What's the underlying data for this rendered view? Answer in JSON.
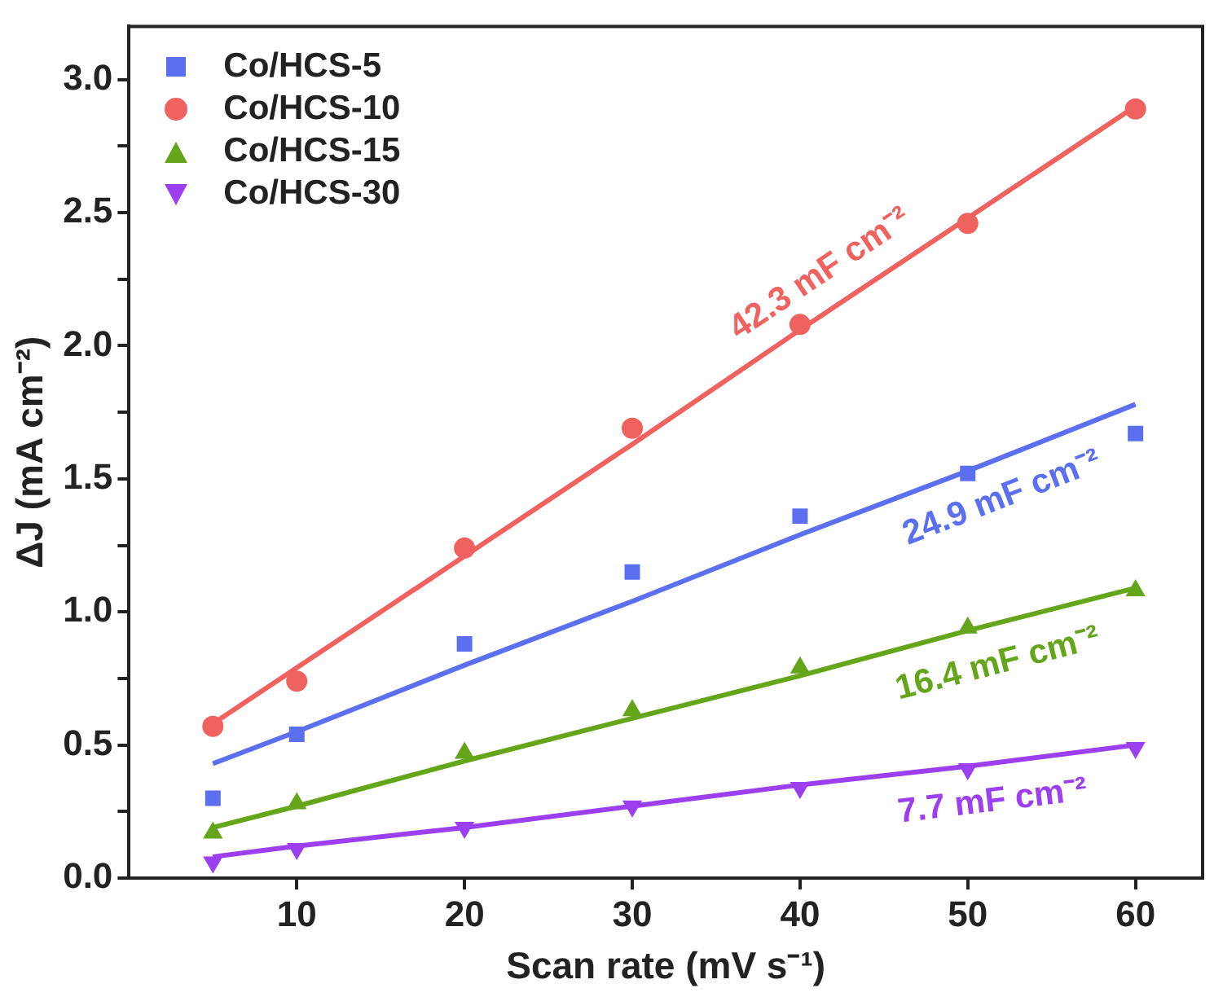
{
  "chart_data": {
    "type": "scatter",
    "xlabel": "Scan rate (mV s⁻¹)",
    "ylabel": "ΔJ (mA cm⁻²)",
    "x": [
      5,
      10,
      20,
      30,
      40,
      50,
      60
    ],
    "series": [
      {
        "name": "Co/HCS-5",
        "color": "#5b6ff0",
        "marker": "square",
        "values": [
          0.3,
          0.54,
          0.88,
          1.15,
          1.36,
          1.52,
          1.67
        ]
      },
      {
        "name": "Co/HCS-10",
        "color": "#f0625f",
        "marker": "circle",
        "values": [
          0.57,
          0.74,
          1.24,
          1.69,
          2.08,
          2.46,
          2.89
        ]
      },
      {
        "name": "Co/HCS-15",
        "color": "#64a51a",
        "marker": "triangle",
        "values": [
          0.17,
          0.28,
          0.47,
          0.63,
          0.79,
          0.94,
          1.08
        ]
      },
      {
        "name": "Co/HCS-30",
        "color": "#9b3ff0",
        "marker": "triangle-down",
        "values": [
          0.06,
          0.11,
          0.19,
          0.27,
          0.34,
          0.41,
          0.49
        ]
      },
      {
        "type": "line",
        "color": "#5b6ff0",
        "values": [
          0.43,
          0.55,
          0.8,
          1.04,
          1.29,
          1.53,
          1.78
        ]
      },
      {
        "type": "line",
        "color": "#f0625f",
        "values": [
          0.58,
          0.79,
          1.21,
          1.63,
          2.06,
          2.48,
          2.9
        ]
      },
      {
        "type": "line",
        "color": "#64a51a",
        "values": [
          0.19,
          0.27,
          0.44,
          0.6,
          0.76,
          0.93,
          1.09
        ]
      },
      {
        "type": "line",
        "color": "#9b3ff0",
        "values": [
          0.08,
          0.12,
          0.19,
          0.27,
          0.35,
          0.42,
          0.5
        ]
      }
    ],
    "annotations": [
      "24.9 mF cm⁻²",
      "42.3 mF cm⁻²",
      "16.4 mF cm⁻²",
      "7.7 mF cm⁻²"
    ],
    "xlim": [
      0,
      64
    ],
    "xticks": [
      10,
      20,
      30,
      40,
      50,
      60
    ],
    "ylim": [
      0,
      3.2
    ],
    "yticks": [
      {
        "value": 0,
        "label": "0.0"
      },
      {
        "value": 0.25,
        "label": null
      },
      {
        "value": 0.5,
        "label": "0.5"
      },
      {
        "value": 0.75,
        "label": null
      },
      {
        "value": 1,
        "label": "1.0"
      },
      {
        "value": 1.25,
        "label": null
      },
      {
        "value": 1.5,
        "label": "1.5"
      },
      {
        "value": 1.75,
        "label": null
      },
      {
        "value": 2,
        "label": "2.0"
      },
      {
        "value": 2.25,
        "label": null
      },
      {
        "value": 2.5,
        "label": "2.5"
      },
      {
        "value": 2.75,
        "label": null
      },
      {
        "value": 3,
        "label": "3.0"
      }
    ],
    "grid": false,
    "legend": "top left",
    "line_style": "solid"
  }
}
